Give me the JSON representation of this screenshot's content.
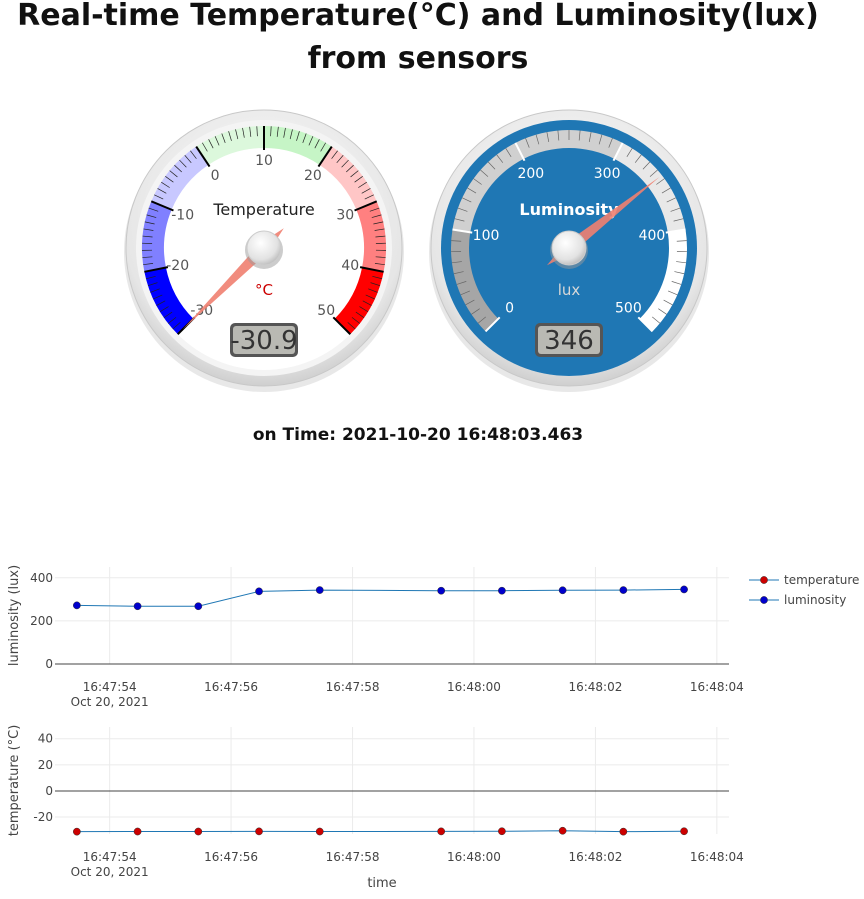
{
  "page": {
    "title": "Real-time Temperature(°C) and Luminosity(lux) from sensors",
    "time_prefix": "on Time:",
    "time_value": "2021-10-20 16:48:03.463"
  },
  "gauges": [
    {
      "id": "temperature",
      "label": "Temperature",
      "unit": "°C",
      "display": "-30.9",
      "value": -30.9,
      "min": -30,
      "max": 50,
      "ticks": [
        "-30",
        "-20",
        "-10",
        "0",
        "10",
        "20",
        "30",
        "40",
        "50"
      ],
      "highlights": [
        {
          "from": -30,
          "to": -20,
          "color": "#0000ff"
        },
        {
          "from": -20,
          "to": -10,
          "color": "#8080ff"
        },
        {
          "from": -10,
          "to": 0,
          "color": "#c8c8ff"
        },
        {
          "from": 0,
          "to": 10,
          "color": "#dcf8dc"
        },
        {
          "from": 10,
          "to": 20,
          "color": "#c6f5c6"
        },
        {
          "from": 20,
          "to": 30,
          "color": "#ffc6c6"
        },
        {
          "from": 30,
          "to": 40,
          "color": "#ff8080"
        },
        {
          "from": 40,
          "to": 50,
          "color": "#ff0000"
        }
      ],
      "colors": {
        "plate": "#ffffff",
        "text": "#555555",
        "units": "#cc0000",
        "needle": "#f08070"
      }
    },
    {
      "id": "luminosity",
      "label": "Luminosity",
      "unit": "lux",
      "display": "346",
      "value": 346,
      "min": 0,
      "max": 500,
      "ticks": [
        "0",
        "100",
        "200",
        "300",
        "400",
        "500"
      ],
      "highlights": [
        {
          "from": 0,
          "to": 100,
          "color": "#a6a6a6"
        },
        {
          "from": 100,
          "to": 300,
          "color": "#d0d0d0"
        },
        {
          "from": 300,
          "to": 400,
          "color": "#e8e8e8"
        },
        {
          "from": 400,
          "to": 500,
          "color": "#ffffff"
        }
      ],
      "colors": {
        "plate": "#1f77b4",
        "text": "#ffffff",
        "units": "#d8d8d8",
        "needle": "#f08070"
      }
    }
  ],
  "chart_data": [
    {
      "type": "line",
      "ylabel": "luminosity (lux)",
      "xlabel": "",
      "ylim": [
        0,
        450
      ],
      "yticks": [
        0,
        200,
        400
      ],
      "xlim": [
        "16:47:53.1",
        "16:48:04.2"
      ],
      "xticks": [
        "16:47:54",
        "16:47:56",
        "16:47:58",
        "16:48:00",
        "16:48:02",
        "16:48:04"
      ],
      "x_date_label": "Oct 20, 2021",
      "grid": true,
      "series": [
        {
          "name": "luminosity",
          "color": "#0000cc",
          "x": [
            "16:47:53.46",
            "16:47:54.46",
            "16:47:55.46",
            "16:47:56.46",
            "16:47:57.46",
            "16:47:59.46",
            "16:48:00.46",
            "16:48:01.46",
            "16:48:02.46",
            "16:48:03.46"
          ],
          "y": [
            272,
            268,
            268,
            337,
            343,
            340,
            340,
            342,
            343,
            346
          ]
        }
      ]
    },
    {
      "type": "line",
      "ylabel": "temperature (°C)",
      "xlabel": "time",
      "ylim": [
        -33,
        49
      ],
      "yticks": [
        -20,
        0,
        20,
        40
      ],
      "xlim": [
        "16:47:53.1",
        "16:48:04.2"
      ],
      "xticks": [
        "16:47:54",
        "16:47:56",
        "16:47:58",
        "16:48:00",
        "16:48:02",
        "16:48:04"
      ],
      "x_date_label": "Oct 20, 2021",
      "grid": true,
      "series": [
        {
          "name": "temperature",
          "color": "#cc0000",
          "x": [
            "16:47:53.46",
            "16:47:54.46",
            "16:47:55.46",
            "16:47:56.46",
            "16:47:57.46",
            "16:47:59.46",
            "16:48:00.46",
            "16:48:01.46",
            "16:48:02.46",
            "16:48:03.46"
          ],
          "y": [
            -31.2,
            -31.1,
            -31.1,
            -31.0,
            -31.1,
            -31.0,
            -30.9,
            -30.5,
            -31.2,
            -30.9
          ]
        }
      ]
    }
  ],
  "legend": {
    "placement": "top-right",
    "items": [
      {
        "name": "temperature",
        "color": "#cc0000"
      },
      {
        "name": "luminosity",
        "color": "#0000cc"
      }
    ],
    "line_color": "#1f77b4"
  }
}
